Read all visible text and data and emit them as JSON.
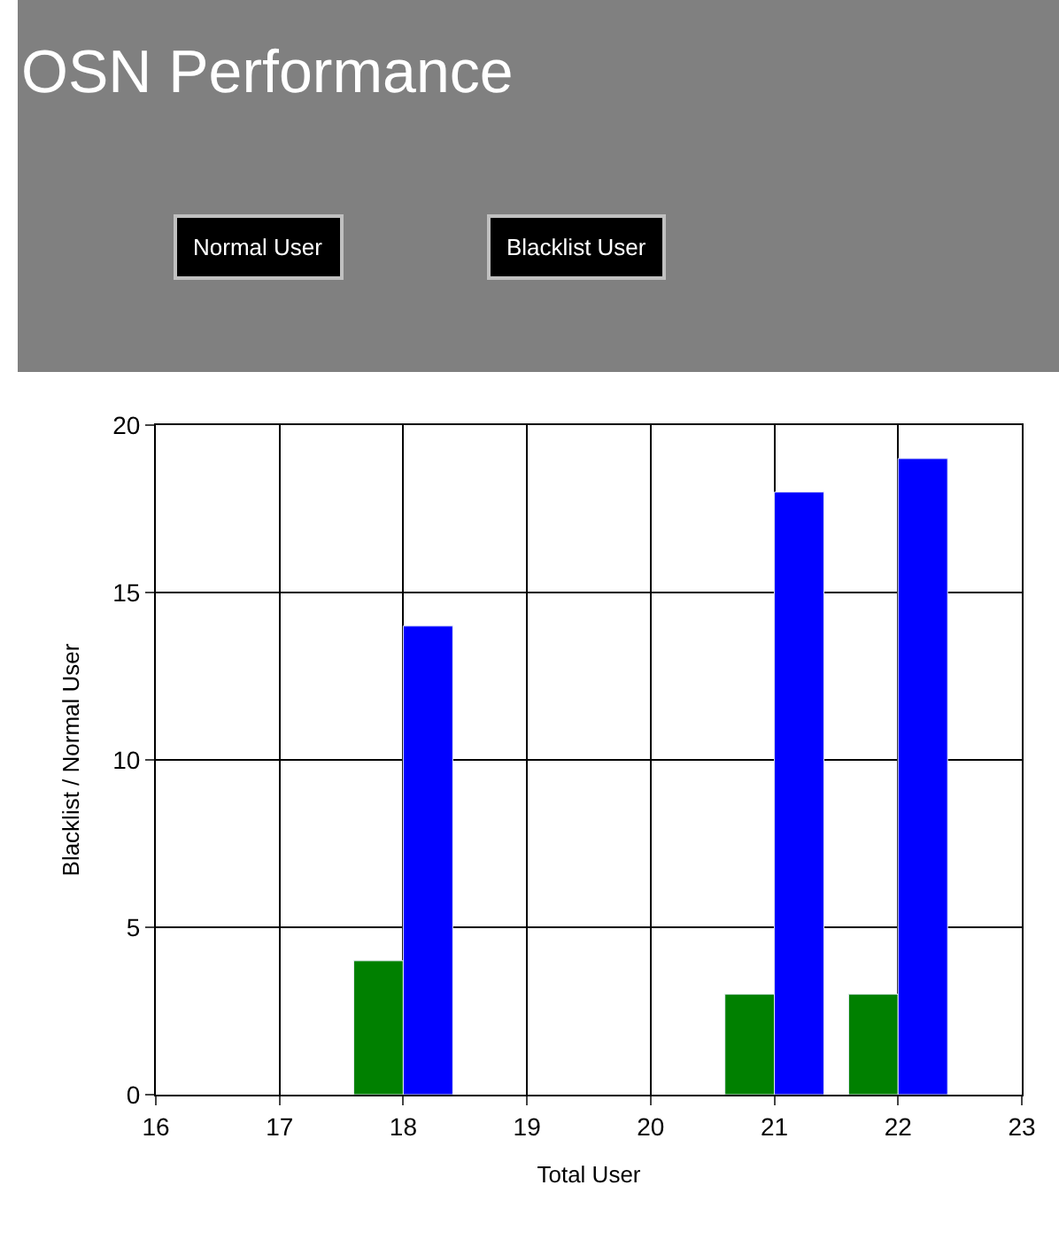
{
  "chart_data": {
    "type": "bar",
    "title": "OSN Performance",
    "xlabel": "Total User",
    "ylabel": "Blacklist / Normal User",
    "annotations": [
      "Normal User",
      "Blacklist User"
    ],
    "x": [
      18,
      21,
      22
    ],
    "series": [
      {
        "color": "#008000",
        "values": [
          4,
          3,
          3
        ]
      },
      {
        "color": "#0000ff",
        "values": [
          14,
          18,
          19
        ]
      }
    ],
    "xlim": [
      16,
      23
    ],
    "xticks": [
      16,
      17,
      18,
      19,
      20,
      21,
      22,
      23
    ],
    "ylim": [
      0,
      20
    ],
    "yticks": [
      0,
      5,
      10,
      15,
      20
    ],
    "grid": true
  }
}
